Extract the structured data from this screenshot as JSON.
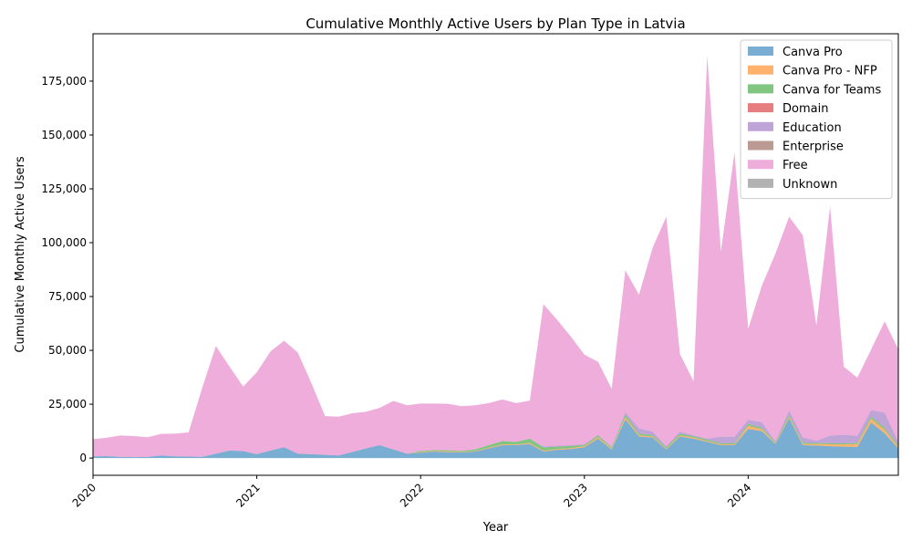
{
  "chart_data": {
    "type": "area",
    "stacked": true,
    "title": "Cumulative Monthly Active Users by Plan Type in Latvia",
    "xlabel": "Year",
    "ylabel": "Cumulative Monthly Active Users",
    "xlim": [
      2020.0,
      2024.9167
    ],
    "ylim": [
      -8000,
      197000
    ],
    "x_ticks": [
      2020,
      2021,
      2022,
      2023,
      2024
    ],
    "x_tick_labels": [
      "2020",
      "2021",
      "2022",
      "2023",
      "2024"
    ],
    "y_ticks": [
      0,
      25000,
      50000,
      75000,
      100000,
      125000,
      150000,
      175000
    ],
    "y_tick_labels": [
      "0",
      "25,000",
      "50,000",
      "75,000",
      "100,000",
      "125,000",
      "150,000",
      "175,000"
    ],
    "grid": false,
    "legend_position": "top-right",
    "x": [
      "2020-01",
      "2020-02",
      "2020-03",
      "2020-04",
      "2020-05",
      "2020-06",
      "2020-07",
      "2020-08",
      "2020-09",
      "2020-10",
      "2020-11",
      "2020-12",
      "2021-01",
      "2021-02",
      "2021-03",
      "2021-04",
      "2021-05",
      "2021-06",
      "2021-07",
      "2021-08",
      "2021-09",
      "2021-10",
      "2021-11",
      "2021-12",
      "2022-01",
      "2022-02",
      "2022-03",
      "2022-04",
      "2022-05",
      "2022-06",
      "2022-07",
      "2022-08",
      "2022-09",
      "2022-10",
      "2022-11",
      "2022-12",
      "2023-01",
      "2023-02",
      "2023-03",
      "2023-04",
      "2023-05",
      "2023-06",
      "2023-07",
      "2023-08",
      "2023-09",
      "2023-10",
      "2023-11",
      "2023-12",
      "2024-01",
      "2024-02",
      "2024-03",
      "2024-04",
      "2024-05",
      "2024-06",
      "2024-07",
      "2024-08",
      "2024-09",
      "2024-10",
      "2024-11",
      "2024-12"
    ],
    "series": [
      {
        "name": "Canva Pro",
        "color": "#1f77b4",
        "values": [
          800,
          900,
          500,
          400,
          500,
          1200,
          800,
          700,
          600,
          2000,
          3500,
          3200,
          1800,
          3500,
          5000,
          2000,
          1800,
          1500,
          1200,
          2800,
          4500,
          6000,
          4000,
          2000,
          2500,
          3000,
          2700,
          2600,
          3000,
          4500,
          6000,
          6000,
          6500,
          3000,
          3800,
          4200,
          5000,
          9000,
          4000,
          18000,
          10000,
          9500,
          4000,
          10000,
          9000,
          7500,
          6000,
          6000,
          13500,
          12500,
          6500,
          18500,
          6000,
          5800,
          5500,
          5300,
          5200,
          16500,
          11500,
          4500
        ]
      },
      {
        "name": "Canva Pro - NFP",
        "color": "#ff7f0e",
        "values": [
          0,
          0,
          0,
          0,
          0,
          0,
          0,
          0,
          0,
          0,
          0,
          0,
          0,
          0,
          0,
          0,
          0,
          0,
          0,
          0,
          0,
          0,
          0,
          0,
          200,
          300,
          300,
          200,
          200,
          300,
          400,
          300,
          500,
          400,
          300,
          400,
          500,
          700,
          500,
          1000,
          600,
          500,
          400,
          500,
          500,
          400,
          400,
          400,
          1500,
          900,
          300,
          800,
          500,
          700,
          900,
          1000,
          1300,
          1800,
          1600,
          800
        ]
      },
      {
        "name": "Canva for Teams",
        "color": "#2ca02c",
        "values": [
          0,
          0,
          0,
          0,
          0,
          0,
          0,
          0,
          0,
          0,
          0,
          0,
          0,
          0,
          0,
          0,
          0,
          0,
          0,
          0,
          0,
          0,
          0,
          0,
          500,
          400,
          600,
          500,
          800,
          1200,
          1500,
          1200,
          2000,
          1500,
          1200,
          1000,
          600,
          800,
          500,
          1200,
          700,
          700,
          600,
          800,
          600,
          600,
          500,
          500,
          800,
          700,
          500,
          800,
          600,
          500,
          500,
          500,
          500,
          1000,
          900,
          700
        ]
      },
      {
        "name": "Domain",
        "color": "#d62728",
        "values": [
          0,
          0,
          0,
          0,
          0,
          0,
          0,
          0,
          0,
          0,
          0,
          0,
          0,
          0,
          0,
          0,
          0,
          0,
          0,
          0,
          0,
          0,
          0,
          0,
          0,
          0,
          0,
          0,
          0,
          0,
          0,
          0,
          0,
          0,
          0,
          0,
          0,
          0,
          0,
          0,
          0,
          0,
          0,
          0,
          0,
          0,
          0,
          0,
          0,
          0,
          0,
          0,
          0,
          0,
          0,
          0,
          0,
          0,
          0,
          0
        ]
      },
      {
        "name": "Education",
        "color": "#9467bd",
        "values": [
          0,
          0,
          0,
          0,
          0,
          0,
          0,
          0,
          0,
          0,
          0,
          0,
          0,
          0,
          0,
          0,
          0,
          0,
          0,
          0,
          0,
          0,
          0,
          0,
          0,
          0,
          0,
          0,
          0,
          0,
          0,
          0,
          0,
          500,
          400,
          400,
          300,
          300,
          300,
          1000,
          2500,
          1500,
          500,
          1000,
          500,
          500,
          3000,
          3000,
          2000,
          2500,
          500,
          2000,
          2500,
          1000,
          3500,
          4000,
          3300,
          3000,
          7000,
          1500
        ]
      },
      {
        "name": "Enterprise",
        "color": "#8c564b",
        "values": [
          0,
          0,
          0,
          0,
          0,
          0,
          0,
          0,
          0,
          0,
          0,
          0,
          0,
          0,
          0,
          0,
          0,
          0,
          0,
          0,
          0,
          0,
          0,
          0,
          0,
          0,
          0,
          0,
          0,
          0,
          0,
          0,
          0,
          0,
          0,
          0,
          0,
          0,
          0,
          0,
          0,
          0,
          0,
          0,
          0,
          0,
          0,
          0,
          0,
          0,
          0,
          0,
          0,
          0,
          0,
          0,
          0,
          0,
          0,
          0
        ]
      },
      {
        "name": "Free",
        "color": "#e377c2",
        "values": [
          8000,
          8500,
          10000,
          9800,
          9200,
          10000,
          10500,
          11200,
          32000,
          50000,
          39000,
          30000,
          38000,
          46000,
          49500,
          47000,
          33000,
          18000,
          18000,
          18000,
          17000,
          17300,
          22500,
          22500,
          22100,
          21600,
          21600,
          20800,
          20500,
          19500,
          19300,
          18000,
          17700,
          66000,
          58500,
          50500,
          41600,
          33900,
          26900,
          66000,
          62000,
          85500,
          106500,
          36000,
          25000,
          178000,
          86000,
          132000,
          42200,
          63400,
          87200,
          89900,
          93900,
          53500,
          106500,
          31600,
          27000,
          28000,
          42500,
          43000
        ]
      },
      {
        "name": "Unknown",
        "color": "#7f7f7f",
        "values": [
          0,
          0,
          0,
          0,
          0,
          0,
          0,
          0,
          0,
          0,
          0,
          0,
          0,
          0,
          0,
          0,
          0,
          0,
          0,
          0,
          0,
          0,
          0,
          0,
          0,
          0,
          0,
          0,
          0,
          0,
          0,
          0,
          0,
          0,
          0,
          0,
          0,
          0,
          0,
          0,
          0,
          0,
          0,
          0,
          0,
          0,
          0,
          0,
          0,
          0,
          0,
          0,
          0,
          0,
          0,
          0,
          0,
          0,
          0,
          0
        ]
      }
    ]
  }
}
